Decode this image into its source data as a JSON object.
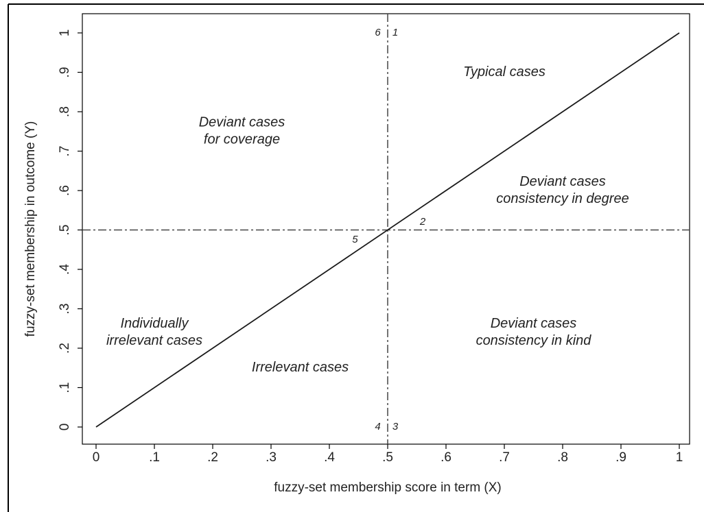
{
  "chart_data": {
    "type": "line",
    "x_label": "fuzzy-set membership score in term (X)",
    "y_label": "fuzzy-set membership in outcome (Y)",
    "x": [
      0,
      1
    ],
    "values": [
      0,
      1
    ],
    "color": "#1a1a1a",
    "xlim": [
      0,
      1
    ],
    "ylim": [
      0,
      1
    ],
    "xticks": [
      0,
      {
        "value": 0.1,
        "label": ".1"
      },
      {
        "value": 0.2,
        "label": ".2"
      },
      {
        "value": 0.3,
        "label": ".3"
      },
      {
        "value": 0.4,
        "label": ".4"
      },
      {
        "value": 0.5,
        "label": ".5"
      },
      {
        "value": 0.6,
        "label": ".6"
      },
      {
        "value": 0.7,
        "label": ".7"
      },
      {
        "value": 0.8,
        "label": ".8"
      },
      {
        "value": 0.9,
        "label": ".9"
      },
      1
    ],
    "yticks": [
      0,
      {
        "value": 0.1,
        "label": ".1"
      },
      {
        "value": 0.2,
        "label": ".2"
      },
      {
        "value": 0.3,
        "label": ".3"
      },
      {
        "value": 0.4,
        "label": ".4"
      },
      {
        "value": 0.5,
        "label": ".5"
      },
      {
        "value": 0.6,
        "label": ".6"
      },
      {
        "value": 0.7,
        "label": ".7"
      },
      {
        "value": 0.8,
        "label": ".8"
      },
      {
        "value": 0.9,
        "label": ".9"
      },
      1
    ],
    "vlines": [
      0.5
    ],
    "hlines": [
      0.5
    ],
    "annotations": [
      {
        "text": [
          "Typical cases"
        ],
        "x": 0.7,
        "y": 0.9
      },
      {
        "text": [
          "Deviant cases",
          "for coverage"
        ],
        "x": 0.25,
        "y": 0.75
      },
      {
        "text": [
          "Deviant cases",
          "consistency in degree"
        ],
        "x": 0.8,
        "y": 0.6
      },
      {
        "text": [
          "Individually",
          "irrelevant cases"
        ],
        "x": 0.1,
        "y": 0.24
      },
      {
        "text": [
          "Irrelevant cases"
        ],
        "x": 0.35,
        "y": 0.15
      },
      {
        "text": [
          "Deviant cases",
          "consistency in kind"
        ],
        "x": 0.75,
        "y": 0.24
      },
      {
        "text": [
          "6"
        ],
        "x": 0.483,
        "y": 1
      },
      {
        "text": [
          "1"
        ],
        "x": 0.513,
        "y": 1
      },
      {
        "text": [
          "2"
        ],
        "x": 0.56,
        "y": 0.52
      },
      {
        "text": [
          "5"
        ],
        "x": 0.444,
        "y": 0.475
      },
      {
        "text": [
          "4"
        ],
        "x": 0.483,
        "y": 0
      },
      {
        "text": [
          "3"
        ],
        "x": 0.513,
        "y": 0
      }
    ]
  }
}
